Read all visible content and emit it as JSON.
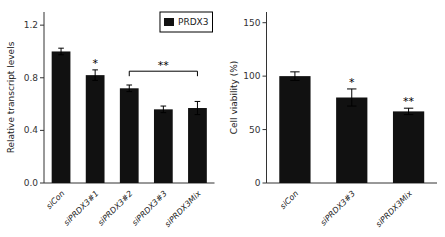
{
  "chart_data": [
    {
      "type": "bar",
      "categories": [
        "siCon",
        "siPRDX3#1",
        "siPRDX3#2",
        "siPRDX3#3",
        "siPRDX3Mix"
      ],
      "series": [
        {
          "name": "PRDX3",
          "color": "#111111",
          "values": [
            1.0,
            0.82,
            0.72,
            0.56,
            0.57
          ],
          "errors": [
            0.025,
            0.04,
            0.025,
            0.025,
            0.05
          ]
        }
      ],
      "ylabel": "Relative transcript levels",
      "ylim": [
        0,
        1.3
      ],
      "yticks": [
        {
          "value": 0,
          "label": "0.0"
        },
        0.4,
        0.8,
        1.2
      ],
      "legend": "upper right",
      "annotations": [
        {
          "text": "*",
          "x": "siPRDX3#1"
        },
        {
          "text": "**",
          "x1": "siPRDX3#2",
          "x2": "siPRDX3Mix",
          "y": 0.85
        }
      ]
    },
    {
      "type": "bar",
      "categories": [
        "siCon",
        "siPRDX3#3",
        "siPRDX3Mix"
      ],
      "values": [
        100,
        80,
        67
      ],
      "errors": [
        4,
        8,
        3
      ],
      "color": "#111111",
      "ylabel": "Cell viability (%)",
      "ylim": [
        0,
        160
      ],
      "yticks": [
        0,
        50,
        100,
        150
      ],
      "annotations": [
        {
          "text": "*",
          "x": "siPRDX3#3"
        },
        {
          "text": "**",
          "x": "siPRDX3Mix"
        }
      ]
    }
  ]
}
